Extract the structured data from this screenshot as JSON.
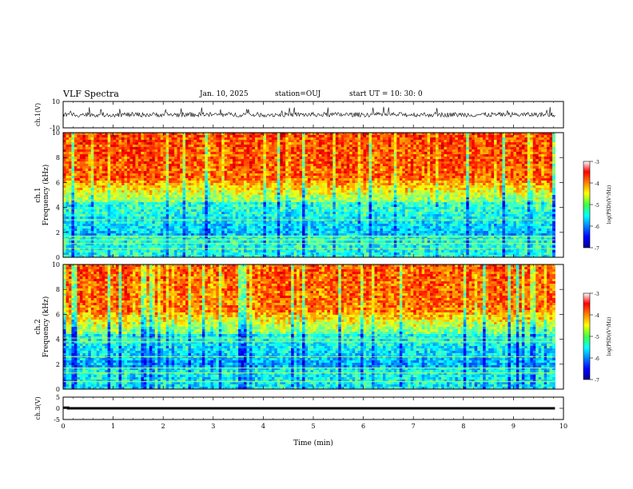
{
  "header": {
    "title": "VLF Spectra",
    "date": "Jan. 10, 2025",
    "station": "station=OUJ",
    "start_ut": "start UT = 10: 30: 0"
  },
  "chart_data": [
    {
      "type": "line",
      "panel": "ch1-waveform",
      "ylabel": "ch.1(V)",
      "ylim": [
        -10,
        10
      ],
      "yticks": [
        "10",
        "-10"
      ],
      "xlim": [
        0,
        10
      ],
      "description_color": "#000000"
    },
    {
      "type": "heatmap",
      "panel": "ch1-spectrogram",
      "ylabel": "ch.1\nFrequency (kHz)",
      "ylim": [
        0,
        10
      ],
      "yticks": [
        "0",
        "2",
        "4",
        "6",
        "8",
        "10"
      ],
      "xlim": [
        0,
        10
      ],
      "colorbar": {
        "label": "log(PSD)(V²/Hz)",
        "range": [
          -7,
          -3
        ],
        "ticks": [
          "-3",
          "-4",
          "-5",
          "-6",
          "-7"
        ]
      }
    },
    {
      "type": "heatmap",
      "panel": "ch2-spectrogram",
      "ylabel": "ch.2\nFrequency (kHz)",
      "ylim": [
        0,
        10
      ],
      "yticks": [
        "0",
        "2",
        "4",
        "6",
        "8",
        "10"
      ],
      "xlim": [
        0,
        10
      ],
      "colorbar": {
        "label": "log(PSD)(V²/Hz)",
        "range": [
          -7,
          -3
        ],
        "ticks": [
          "-3",
          "-4",
          "-5",
          "-6",
          "-7"
        ]
      }
    },
    {
      "type": "line",
      "panel": "ch3-level",
      "ylabel": "ch.3(V)",
      "ylim": [
        -5,
        5
      ],
      "yticks": [
        "5",
        "0",
        "-5"
      ],
      "xlim": [
        0,
        10
      ],
      "xlabel": "Time (min)",
      "xticks": [
        "0",
        "1",
        "2",
        "3",
        "4",
        "5",
        "6",
        "7",
        "8",
        "9",
        "10"
      ],
      "x": [
        0,
        0.1,
        0.1,
        2.5,
        2.5,
        9.83
      ],
      "y": [
        0.3,
        0.3,
        0,
        0,
        0,
        0
      ]
    }
  ],
  "colors": {
    "jet_low": "#00008f",
    "jet_high": "#d00000",
    "trace": "#000000"
  }
}
